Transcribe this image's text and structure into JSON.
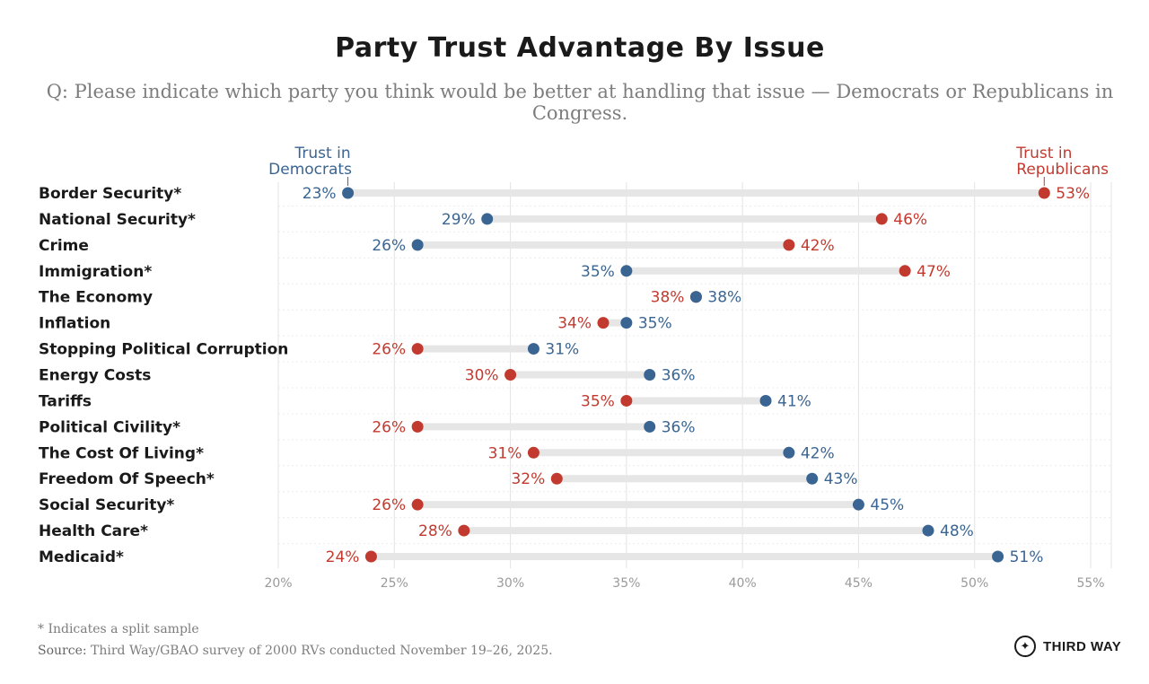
{
  "colors": {
    "democrat": "#3a6592",
    "republican": "#c23a2f",
    "track": "#e6e6e6",
    "grid": "#e3e3e3",
    "text": "#1a1a1a",
    "muted": "#8a8a8a"
  },
  "chart_data": {
    "type": "dumbbell",
    "title": "Party Trust Advantage By Issue",
    "subtitle": "Q: Please indicate which party you think would be better at handling that issue — Democrats or Republicans in Congress.",
    "xlim": [
      20,
      55
    ],
    "ticks": [
      20,
      25,
      30,
      35,
      40,
      45,
      50,
      55
    ],
    "tick_suffix": "%",
    "legend": {
      "democrats": [
        "Trust in",
        "Democrats"
      ],
      "republicans": [
        "Trust in",
        "Republicans"
      ]
    },
    "issues": [
      "Border Security*",
      "National Security*",
      "Crime",
      "Immigration*",
      "The Economy",
      "Inflation",
      "Stopping Political Corruption",
      "Energy Costs",
      "Tariffs",
      "Political Civility*",
      "The Cost Of Living*",
      "Freedom Of Speech*",
      "Social Security*",
      "Health Care*",
      "Medicaid*"
    ],
    "series": [
      {
        "name": "Trust in Democrats",
        "values": [
          23,
          29,
          26,
          35,
          38,
          35,
          31,
          36,
          41,
          36,
          42,
          43,
          45,
          48,
          51
        ]
      },
      {
        "name": "Trust in Republicans",
        "values": [
          53,
          46,
          42,
          47,
          38,
          34,
          26,
          30,
          35,
          26,
          31,
          32,
          26,
          28,
          24
        ]
      }
    ]
  },
  "footer": {
    "note": "* Indicates a split sample",
    "source_label": "Source:",
    "source_text": " Third Way/GBAO survey of 2000 RVs conducted November 19–26, 2025.",
    "logo_text": "THIRD WAY",
    "logo_icon": "compass-icon",
    "logo_glyph": "✦"
  }
}
